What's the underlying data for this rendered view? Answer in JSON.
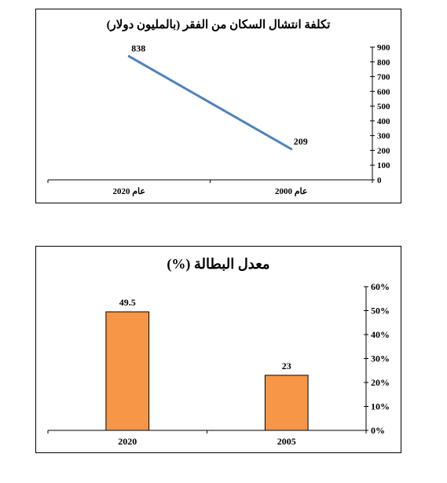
{
  "charts": [
    {
      "type": "line",
      "title": "تكلفة انتشال السكان من الفقر (بالمليون دولار)",
      "categories": [
        "عام 2020",
        "عام 2000"
      ],
      "values": [
        838,
        209
      ],
      "ylim": [
        0,
        900
      ],
      "y_ticks": [
        "0",
        "100",
        "200",
        "300",
        "400",
        "500",
        "600",
        "700",
        "800",
        "900"
      ],
      "data_labels": [
        "838",
        "209"
      ],
      "y_axis_side": "right",
      "grid": false,
      "line_color": "#4f81bd"
    },
    {
      "type": "bar",
      "title": "معدل البطالة (%)",
      "categories": [
        "2020",
        "2005"
      ],
      "values": [
        49.5,
        23
      ],
      "ylim": [
        0,
        60
      ],
      "y_ticks": [
        "0%",
        "10%",
        "20%",
        "30%",
        "40%",
        "50%",
        "60%"
      ],
      "data_labels": [
        "49.5",
        "23"
      ],
      "y_axis_side": "right",
      "grid": false,
      "bar_color": "#f79646"
    }
  ],
  "chart_data": [
    {
      "type": "line",
      "title": "تكلفة انتشال السكان من الفقر (بالمليون دولار)",
      "x": [
        "عام 2020",
        "عام 2000"
      ],
      "values": [
        838,
        209
      ],
      "ylim": [
        0,
        900
      ]
    },
    {
      "type": "bar",
      "title": "معدل البطالة (%)",
      "categories": [
        "2020",
        "2005"
      ],
      "values": [
        49.5,
        23
      ],
      "ylim": [
        0,
        60
      ]
    }
  ]
}
